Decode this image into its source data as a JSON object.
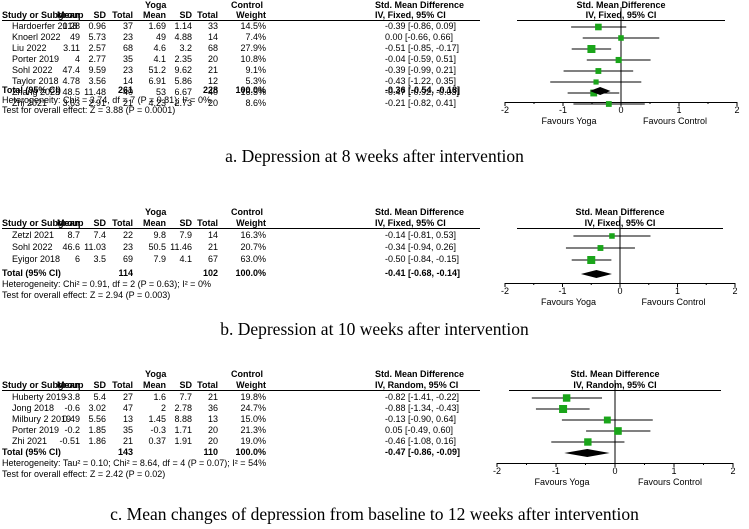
{
  "headers": {
    "study": "Study or Subgroup",
    "yoga": "Yoga",
    "control": "Control",
    "mean": "Mean",
    "sd": "SD",
    "total": "Total",
    "weight": "Weight",
    "smd": "Std. Mean Difference",
    "favours_left": "Favours Yoga",
    "favours_right": "Favours Control"
  },
  "chart_data": [
    {
      "type": "forest",
      "caption": "a. Depression at 8 weeks after intervention",
      "method": "IV, Fixed, 95% CI",
      "xlim": [
        -2,
        2
      ],
      "xticks": [
        "-2",
        "-1",
        "0",
        "1",
        "2"
      ],
      "rows": [
        {
          "study": "Hardoerfer 2018",
          "m1": "1.28",
          "sd1": "0.96",
          "n1": "37",
          "m2": "1.69",
          "sd2": "1.14",
          "n2": "33",
          "w": "14.5%",
          "ci": "-0.39 [-0.86, 0.09]",
          "est": -0.39,
          "lo": -0.86,
          "hi": 0.09,
          "wv": 14.5
        },
        {
          "study": "Knoerl 2022",
          "m1": "49",
          "sd1": "5.73",
          "n1": "23",
          "m2": "49",
          "sd2": "4.88",
          "n2": "14",
          "w": "7.4%",
          "ci": "0.00 [-0.66, 0.66]",
          "est": 0.0,
          "lo": -0.66,
          "hi": 0.66,
          "wv": 7.4
        },
        {
          "study": "Liu 2022",
          "m1": "3.11",
          "sd1": "2.57",
          "n1": "68",
          "m2": "4.6",
          "sd2": "3.2",
          "n2": "68",
          "w": "27.9%",
          "ci": "-0.51 [-0.85, -0.17]",
          "est": -0.51,
          "lo": -0.85,
          "hi": -0.17,
          "wv": 27.9
        },
        {
          "study": "Porter 2019",
          "m1": "4",
          "sd1": "2.77",
          "n1": "35",
          "m2": "4.1",
          "sd2": "2.35",
          "n2": "20",
          "w": "10.8%",
          "ci": "-0.04 [-0.59, 0.51]",
          "est": -0.04,
          "lo": -0.59,
          "hi": 0.51,
          "wv": 10.8
        },
        {
          "study": "Sohl 2022",
          "m1": "47.4",
          "sd1": "9.59",
          "n1": "23",
          "m2": "51.2",
          "sd2": "9.62",
          "n2": "21",
          "w": "9.1%",
          "ci": "-0.39 [-0.99, 0.21]",
          "est": -0.39,
          "lo": -0.99,
          "hi": 0.21,
          "wv": 9.1
        },
        {
          "study": "Taylor 2018",
          "m1": "4.78",
          "sd1": "3.56",
          "n1": "14",
          "m2": "6.91",
          "sd2": "5.86",
          "n2": "12",
          "w": "5.3%",
          "ci": "-0.43 [-1.22, 0.35]",
          "est": -0.43,
          "lo": -1.22,
          "hi": 0.35,
          "wv": 5.3
        },
        {
          "study": "Zhang 2023",
          "m1": "48.5",
          "sd1": "11.48",
          "n1": "40",
          "m2": "53",
          "sd2": "6.67",
          "n2": "40",
          "w": "16.5%",
          "ci": "-0.47 [-0.92, -0.03]",
          "est": -0.47,
          "lo": -0.92,
          "hi": -0.03,
          "wv": 16.5
        },
        {
          "study": "Zhi 2021",
          "m1": "3.63",
          "sd1": "2.91",
          "n1": "21",
          "m2": "4.23",
          "sd2": "2.73",
          "n2": "20",
          "w": "8.6%",
          "ci": "-0.21 [-0.82, 0.41]",
          "est": -0.21,
          "lo": -0.82,
          "hi": 0.41,
          "wv": 8.6
        }
      ],
      "total": {
        "label": "Total (95% CI)",
        "n1": "261",
        "n2": "228",
        "w": "100.0%",
        "ci": "-0.36 [-0.54, -0.18]",
        "est": -0.36,
        "lo": -0.54,
        "hi": -0.18
      },
      "heterogeneity": "Heterogeneity: Chi² = 3.74, df = 7 (P = 0.81); I² = 0%",
      "overall": "Test for overall effect: Z = 3.88 (P = 0.0001)"
    },
    {
      "type": "forest",
      "caption": "b. Depression at 10 weeks after intervention",
      "method": "IV, Fixed, 95% CI",
      "xlim": [
        -2,
        2
      ],
      "xticks": [
        "-2",
        "-1",
        "0",
        "1",
        "2"
      ],
      "rows": [
        {
          "study": "Zetzl 2021",
          "m1": "8.7",
          "sd1": "7.4",
          "n1": "22",
          "m2": "9.8",
          "sd2": "7.9",
          "n2": "14",
          "w": "16.3%",
          "ci": "-0.14 [-0.81, 0.53]",
          "est": -0.14,
          "lo": -0.81,
          "hi": 0.53,
          "wv": 16.3
        },
        {
          "study": "Sohl 2022",
          "m1": "46.6",
          "sd1": "11.03",
          "n1": "23",
          "m2": "50.5",
          "sd2": "11.46",
          "n2": "21",
          "w": "20.7%",
          "ci": "-0.34 [-0.94, 0.26]",
          "est": -0.34,
          "lo": -0.94,
          "hi": 0.26,
          "wv": 20.7
        },
        {
          "study": "Eyigor 2018",
          "m1": "6",
          "sd1": "3.5",
          "n1": "69",
          "m2": "7.9",
          "sd2": "4.1",
          "n2": "67",
          "w": "63.0%",
          "ci": "-0.50 [-0.84, -0.15]",
          "est": -0.5,
          "lo": -0.84,
          "hi": -0.15,
          "wv": 63.0
        }
      ],
      "total": {
        "label": "Total (95% CI)",
        "n1": "114",
        "n2": "102",
        "w": "100.0%",
        "ci": "-0.41 [-0.68, -0.14]",
        "est": -0.41,
        "lo": -0.68,
        "hi": -0.14
      },
      "heterogeneity": "Heterogeneity: Chi² = 0.91, df = 2 (P = 0.63); I² = 0%",
      "overall": "Test for overall effect: Z = 2.94 (P = 0.003)"
    },
    {
      "type": "forest",
      "caption": "c. Mean changes of depression from baseline to 12 weeks after intervention",
      "method": "IV, Random, 95% CI",
      "xlim": [
        -2,
        2
      ],
      "xticks": [
        "-2",
        "-1",
        "0",
        "1",
        "2"
      ],
      "rows": [
        {
          "study": "Huberty 2019",
          "m1": "-3.8",
          "sd1": "5.4",
          "n1": "27",
          "m2": "1.6",
          "sd2": "7.7",
          "n2": "21",
          "w": "19.8%",
          "ci": "-0.82 [-1.41, -0.22]",
          "est": -0.82,
          "lo": -1.41,
          "hi": -0.22,
          "wv": 19.8
        },
        {
          "study": "Jong 2018",
          "m1": "-0.6",
          "sd1": "3.02",
          "n1": "47",
          "m2": "2",
          "sd2": "2.78",
          "n2": "36",
          "w": "24.7%",
          "ci": "-0.88 [-1.34, -0.43]",
          "est": -0.88,
          "lo": -1.34,
          "hi": -0.43,
          "wv": 24.7
        },
        {
          "study": "Milbury 2 2019",
          "m1": "0.49",
          "sd1": "5.56",
          "n1": "13",
          "m2": "1.45",
          "sd2": "8.88",
          "n2": "13",
          "w": "15.0%",
          "ci": "-0.13 [-0.90, 0.64]",
          "est": -0.13,
          "lo": -0.9,
          "hi": 0.64,
          "wv": 15.0
        },
        {
          "study": "Porter 2019",
          "m1": "-0.2",
          "sd1": "1.85",
          "n1": "35",
          "m2": "-0.3",
          "sd2": "1.71",
          "n2": "20",
          "w": "21.3%",
          "ci": "0.05 [-0.49, 0.60]",
          "est": 0.05,
          "lo": -0.49,
          "hi": 0.6,
          "wv": 21.3
        },
        {
          "study": "Zhi 2021",
          "m1": "-0.51",
          "sd1": "1.86",
          "n1": "21",
          "m2": "0.37",
          "sd2": "1.91",
          "n2": "20",
          "w": "19.0%",
          "ci": "-0.46 [-1.08, 0.16]",
          "est": -0.46,
          "lo": -1.08,
          "hi": 0.16,
          "wv": 19.0
        }
      ],
      "total": {
        "label": "Total (95% CI)",
        "n1": "143",
        "n2": "110",
        "w": "100.0%",
        "ci": "-0.47 [-0.86, -0.09]",
        "est": -0.47,
        "lo": -0.86,
        "hi": -0.09
      },
      "heterogeneity": "Heterogeneity: Tau² = 0.10; Chi² = 8.64, df = 4 (P = 0.07); I² = 54%",
      "overall": "Test for overall effect: Z = 2.42 (P = 0.02)"
    }
  ]
}
